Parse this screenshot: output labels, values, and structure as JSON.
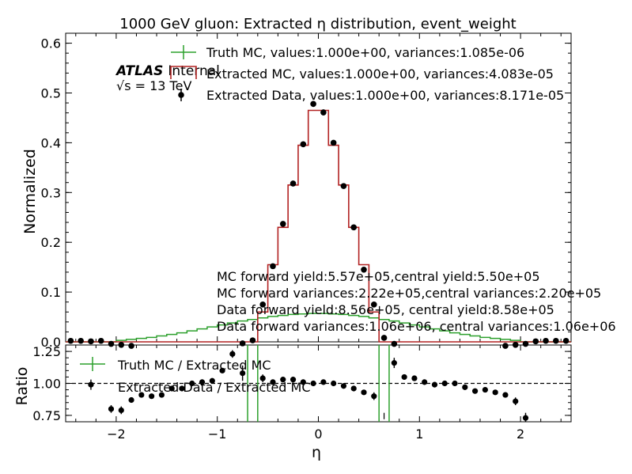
{
  "colors": {
    "truth": "#2ca02c",
    "extracted": "#b22222",
    "data": "#000000"
  },
  "chart_data": [
    {
      "type": "line",
      "title": "1000 GeV gluon: Extracted η distribution, event_weight",
      "ylabel": "Normalized",
      "xlim": [
        -2.5,
        2.5
      ],
      "ylim": [
        0,
        0.62
      ],
      "yticks": [
        "0.0",
        "0.1",
        "0.2",
        "0.3",
        "0.4",
        "0.5",
        "0.6"
      ],
      "atlas_label": "ATLAS",
      "atlas_suffix": "Internal",
      "energy_label": "√s =  13 TeV",
      "legend": {
        "truth": "Truth MC, values:1.000e+00, variances:1.085e-06",
        "extracted": "Extracted MC, values:1.000e+00, variances:4.083e-05",
        "data": "Extracted Data, values:1.000e+00, variances:8.171e-05"
      },
      "annotations": [
        "MC forward yield:5.57e+05,central yield:5.50e+05",
        "MC forward variances:2.22e+05,central variances:2.20e+05",
        "Data forward yield:8.56e+05, central yield:8.58e+05",
        "Data forward variances:1.06e+06, central variances:1.06e+06"
      ],
      "bin_edges": [
        -2.5,
        -2.4,
        -2.3,
        -2.2,
        -2.1,
        -2.0,
        -1.9,
        -1.8,
        -1.7,
        -1.6,
        -1.5,
        -1.4,
        -1.3,
        -1.2,
        -1.1,
        -1.0,
        -0.9,
        -0.8,
        -0.7,
        -0.6,
        -0.5,
        -0.4,
        -0.3,
        -0.2,
        -0.1,
        0.0,
        0.1,
        0.2,
        0.3,
        0.4,
        0.5,
        0.6,
        0.7,
        0.8,
        0.9,
        1.0,
        1.1,
        1.2,
        1.3,
        1.4,
        1.5,
        1.6,
        1.7,
        1.8,
        1.9,
        2.0,
        2.1,
        2.2,
        2.3,
        2.4,
        2.5
      ],
      "series": [
        {
          "name": "Truth MC",
          "style": "step",
          "values": [
            0.0,
            0.0,
            0.0,
            0.0,
            0.0,
            0.003,
            0.005,
            0.007,
            0.009,
            0.012,
            0.015,
            0.018,
            0.022,
            0.026,
            0.03,
            0.034,
            0.038,
            0.042,
            0.045,
            0.048,
            0.051,
            0.053,
            0.055,
            0.056,
            0.057,
            0.057,
            0.056,
            0.055,
            0.053,
            0.051,
            0.048,
            0.045,
            0.042,
            0.038,
            0.034,
            0.03,
            0.026,
            0.022,
            0.018,
            0.015,
            0.012,
            0.009,
            0.007,
            0.005,
            0.003,
            0.0,
            0.0,
            0.0,
            0.0,
            0.0
          ]
        },
        {
          "name": "Extracted MC",
          "style": "step",
          "values": [
            0,
            0,
            0,
            0,
            0,
            0,
            0,
            0,
            0,
            0,
            0,
            0,
            0,
            0,
            0,
            0,
            0,
            0,
            0.0,
            0.06,
            0.155,
            0.23,
            0.315,
            0.395,
            0.465,
            0.465,
            0.395,
            0.315,
            0.23,
            0.155,
            0.06,
            0.0,
            0,
            0,
            0,
            0,
            0,
            0,
            0,
            0,
            0,
            0,
            0,
            0,
            0,
            0,
            0,
            0,
            0,
            0
          ]
        },
        {
          "name": "Extracted Data",
          "style": "points",
          "x": [
            -2.45,
            -2.35,
            -2.25,
            -2.15,
            -2.05,
            -1.95,
            -1.85,
            -0.75,
            -0.65,
            -0.55,
            -0.45,
            -0.35,
            -0.25,
            -0.15,
            -0.05,
            0.05,
            0.15,
            0.25,
            0.35,
            0.45,
            0.55,
            0.65,
            0.75,
            1.85,
            1.95,
            2.05,
            2.15,
            2.25,
            2.35,
            2.45
          ],
          "y": [
            0.002,
            0.002,
            0.001,
            0.002,
            -0.004,
            -0.006,
            -0.008,
            -0.003,
            0.003,
            0.075,
            0.152,
            0.237,
            0.318,
            0.397,
            0.478,
            0.461,
            0.4,
            0.313,
            0.23,
            0.145,
            0.075,
            0.008,
            -0.004,
            -0.008,
            -0.006,
            -0.004,
            0.001,
            0.002,
            0.002,
            0.002
          ],
          "yerr": [
            0.004,
            0.004,
            0.004,
            0.004,
            0.004,
            0.004,
            0.004,
            0.004,
            0.004,
            0.004,
            0.004,
            0.005,
            0.005,
            0.005,
            0.006,
            0.006,
            0.005,
            0.005,
            0.005,
            0.004,
            0.004,
            0.004,
            0.004,
            0.004,
            0.004,
            0.004,
            0.004,
            0.004,
            0.004,
            0.004
          ]
        }
      ]
    },
    {
      "type": "scatter",
      "xlabel": "η",
      "ylabel": "Ratio",
      "xlim": [
        -2.5,
        2.5
      ],
      "ylim": [
        0.7,
        1.3
      ],
      "yticks": [
        "0.75",
        "1.00",
        "1.25"
      ],
      "xticks": [
        "−2",
        "−1",
        "0",
        "1",
        "2"
      ],
      "reference_line": 1.0,
      "legend": {
        "truth": "Truth MC / Extracted MC",
        "data": "Extracted Data / Extracted MC"
      },
      "series": [
        {
          "name": "Truth MC / Extracted MC",
          "style": "step",
          "segments": [
            [
              -0.7,
              0.0,
              1.3
            ],
            [
              -0.6,
              0.0,
              1.3
            ],
            [
              0.6,
              0.0,
              1.3
            ],
            [
              0.7,
              0.0,
              1.3
            ]
          ]
        },
        {
          "name": "Extracted Data / Extracted MC",
          "style": "points",
          "x": [
            -2.25,
            -2.05,
            -1.95,
            -1.85,
            -1.75,
            -1.65,
            -1.55,
            -1.45,
            -1.35,
            -1.25,
            -1.15,
            -1.05,
            -0.95,
            -0.85,
            -0.75,
            -0.55,
            -0.45,
            -0.35,
            -0.25,
            -0.15,
            -0.05,
            0.05,
            0.15,
            0.25,
            0.35,
            0.45,
            0.55,
            0.75,
            0.85,
            0.95,
            1.05,
            1.15,
            1.25,
            1.35,
            1.45,
            1.55,
            1.65,
            1.75,
            1.85,
            1.95,
            2.05
          ],
          "y": [
            0.99,
            0.8,
            0.79,
            0.87,
            0.91,
            0.9,
            0.91,
            0.96,
            0.96,
            1.0,
            1.01,
            1.02,
            1.1,
            1.23,
            1.08,
            1.04,
            1.01,
            1.03,
            1.03,
            1.01,
            1.0,
            1.01,
            1.0,
            0.98,
            0.96,
            0.93,
            0.9,
            1.16,
            1.05,
            1.04,
            1.01,
            0.99,
            1.0,
            1.0,
            0.97,
            0.94,
            0.95,
            0.93,
            0.91,
            0.86,
            0.73
          ],
          "yerr": [
            0.04,
            0.03,
            0.03,
            0.02,
            0.02,
            0.02,
            0.02,
            0.02,
            0.02,
            0.02,
            0.02,
            0.02,
            0.02,
            0.03,
            0.06,
            0.03,
            0.02,
            0.02,
            0.02,
            0.02,
            0.02,
            0.02,
            0.02,
            0.02,
            0.02,
            0.02,
            0.03,
            0.04,
            0.02,
            0.02,
            0.02,
            0.02,
            0.02,
            0.02,
            0.02,
            0.02,
            0.02,
            0.02,
            0.02,
            0.03,
            0.04
          ]
        }
      ]
    }
  ]
}
